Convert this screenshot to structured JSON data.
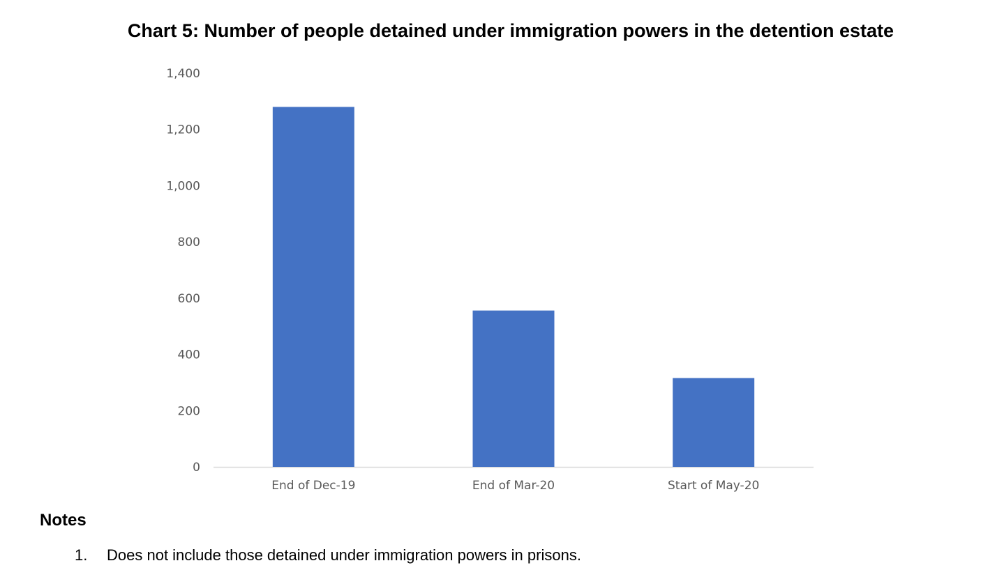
{
  "chart_data": {
    "type": "bar",
    "title": "Chart 5: Number of people detained under immigration powers in the detention estate",
    "xlabel": "",
    "ylabel": "",
    "categories": [
      "End of Dec-19",
      "End of Mar-20",
      "Start of May-20"
    ],
    "values": [
      1280,
      556,
      316
    ],
    "ylim": [
      0,
      1400
    ],
    "yticks": [
      0,
      200,
      400,
      600,
      800,
      1000,
      1200,
      1400
    ],
    "ytick_labels": [
      "0",
      "200",
      "400",
      "600",
      "800",
      "1,000",
      "1,200",
      "1,400"
    ],
    "grid": false,
    "legend": "none",
    "bar_color": "#4472C4",
    "axis_color": "#D9D9D9",
    "label_color": "#595959"
  },
  "notes": {
    "heading": "Notes",
    "items": [
      {
        "number": "1.",
        "text": "Does not include those detained under immigration powers in prisons."
      }
    ]
  }
}
